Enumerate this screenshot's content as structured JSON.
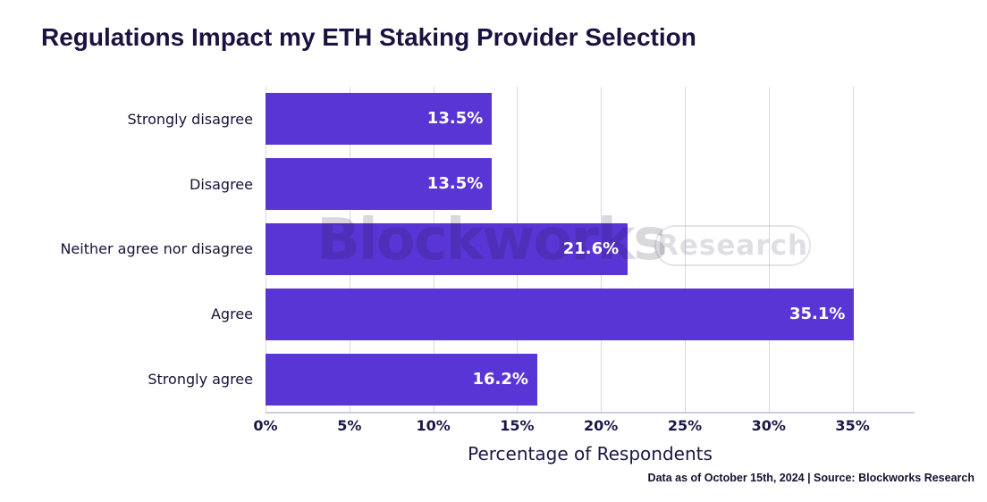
{
  "title": "Regulations Impact my ETH Staking Provider Selection",
  "footer": "Data as of October 15th, 2024 | Source: Blockworks Research",
  "watermark": {
    "brand": "Blockworks",
    "badge": "Research"
  },
  "colors": {
    "bar": "#5a35d6",
    "ink": "#1b1745",
    "title_ink": "#1c123f",
    "grid": "#d9d8e3",
    "axis": "#cfcedd",
    "value_label": "#ffffff"
  },
  "chart_data": {
    "type": "bar",
    "orientation": "horizontal",
    "title": "Regulations Impact my ETH Staking Provider Selection",
    "categories": [
      "Strongly disagree",
      "Disagree",
      "Neither agree nor disagree",
      "Agree",
      "Strongly agree"
    ],
    "values": [
      13.5,
      13.5,
      21.6,
      35.1,
      16.2
    ],
    "value_labels": [
      "13.5%",
      "13.5%",
      "21.6%",
      "35.1%",
      "16.2%"
    ],
    "xlabel": "Percentage of Respondents",
    "ylabel": "",
    "xlim": [
      0,
      38.7
    ],
    "xticks": [
      0,
      5,
      10,
      15,
      20,
      25,
      30,
      35
    ],
    "xtick_labels": [
      "0%",
      "5%",
      "10%",
      "15%",
      "20%",
      "25%",
      "30%",
      "35%"
    ],
    "grid": "vertical",
    "legend": false
  }
}
